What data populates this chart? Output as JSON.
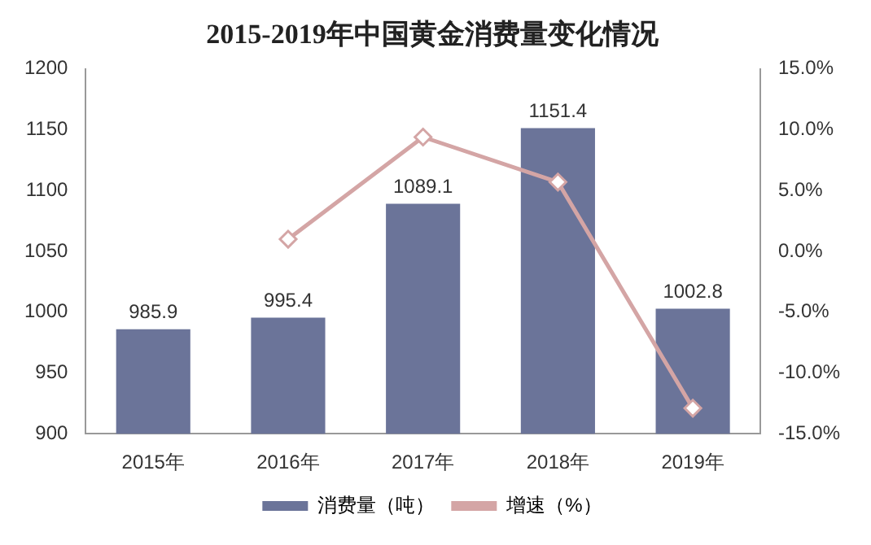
{
  "chart_data": {
    "type": "bar",
    "title": "2015-2019年中国黄金消费量变化情况",
    "categories": [
      "2015年",
      "2016年",
      "2017年",
      "2018年",
      "2019年"
    ],
    "series": [
      {
        "name": "消费量（吨）",
        "color": "#6b7499",
        "values": [
          985.9,
          995.4,
          1089.1,
          1151.4,
          1002.8
        ],
        "value_labels": [
          "985.9",
          "995.4",
          "1089.1",
          "1151.4",
          "1002.8"
        ]
      },
      {
        "name": "增速（%）",
        "type": "line",
        "axis": "y2",
        "color": "#d4a5a5",
        "marker": "diamond",
        "values": [
          null,
          1.0,
          9.4,
          5.7,
          -12.9
        ]
      }
    ],
    "ylim": [
      900,
      1200
    ],
    "yticks": [
      900,
      950,
      1000,
      1050,
      1100,
      1150,
      1200
    ],
    "y2lim": [
      -15,
      15
    ],
    "y2ticks": [
      {
        "value": -15,
        "label": "-15.0%"
      },
      {
        "value": -10,
        "label": "-10.0%"
      },
      {
        "value": -5,
        "label": "-5.0%"
      },
      {
        "value": 0,
        "label": "0.0%"
      },
      {
        "value": 5,
        "label": "5.0%"
      },
      {
        "value": 10,
        "label": "10.0%"
      },
      {
        "value": 15,
        "label": "15.0%"
      }
    ],
    "legend": "bottom",
    "grid": false
  }
}
